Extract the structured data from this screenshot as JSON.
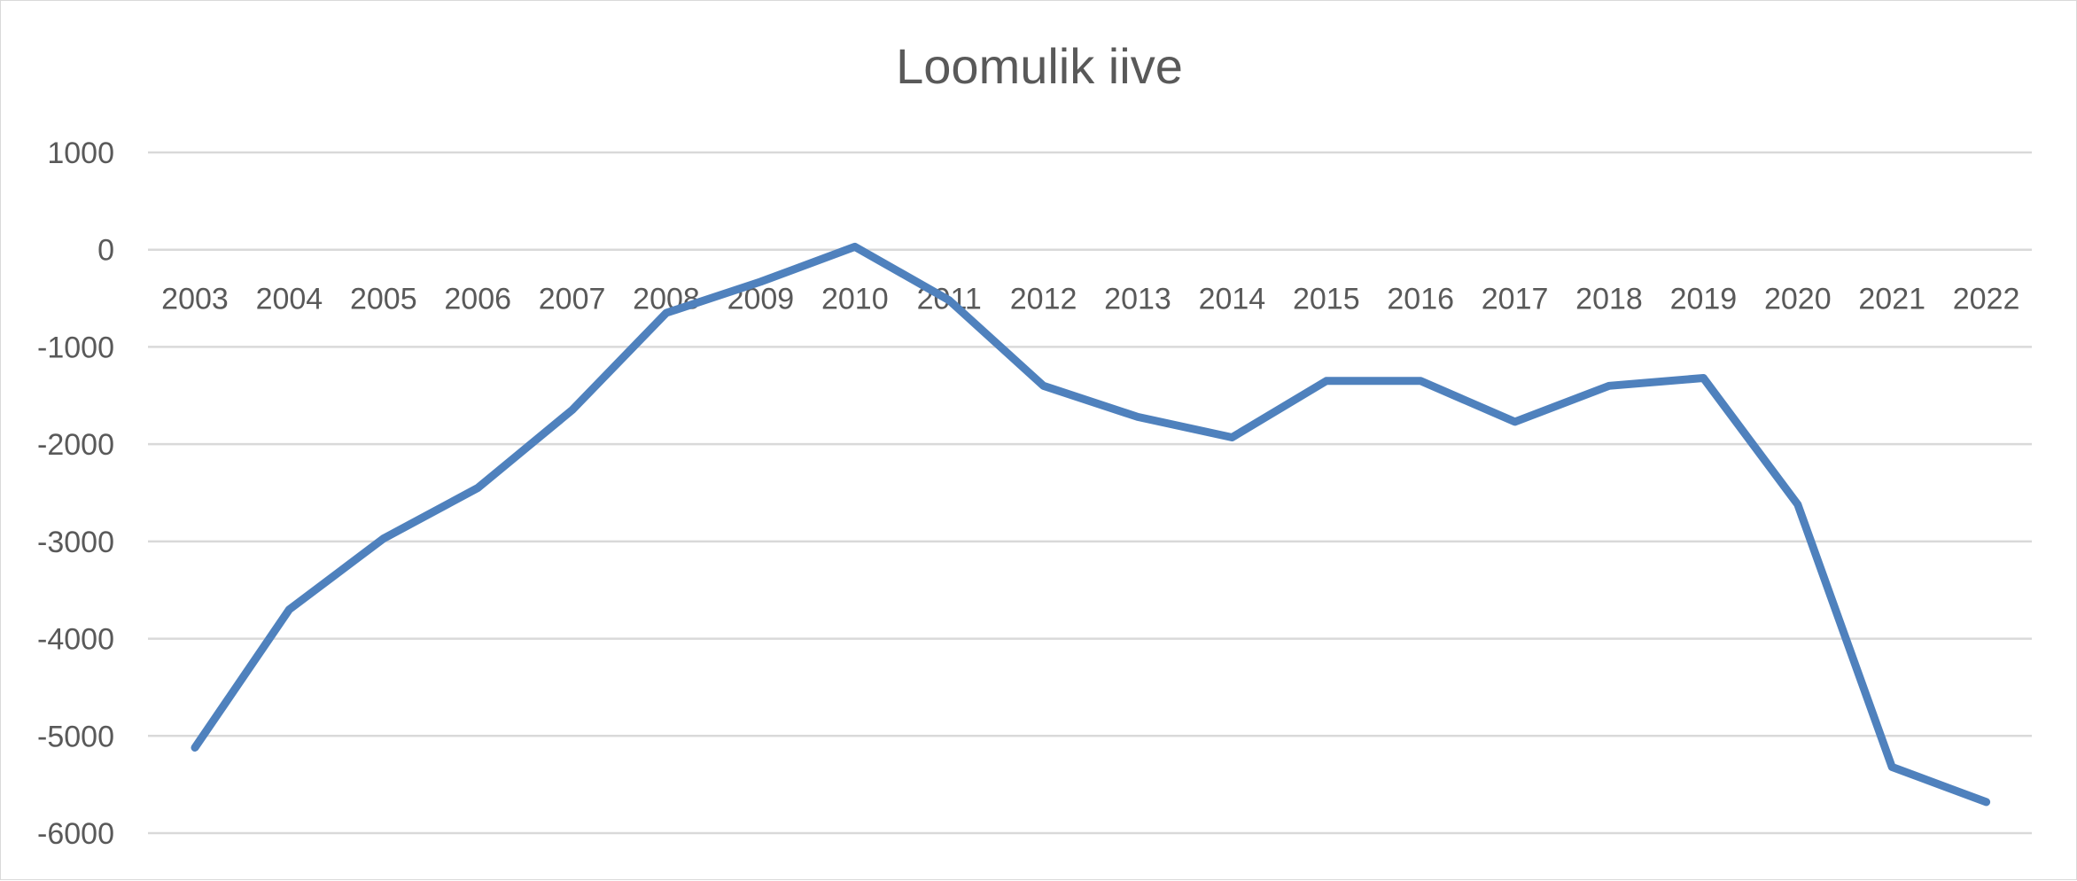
{
  "chart_data": {
    "type": "line",
    "title": "Loomulik iive",
    "xlabel": "",
    "ylabel": "",
    "x": [
      "2003",
      "2004",
      "2005",
      "2006",
      "2007",
      "2008",
      "2009",
      "2010",
      "2011",
      "2012",
      "2013",
      "2014",
      "2015",
      "2016",
      "2017",
      "2018",
      "2019",
      "2020",
      "2021",
      "2022"
    ],
    "series": [
      {
        "values": [
          -5120,
          -3700,
          -2970,
          -2450,
          -1650,
          -650,
          -330,
          30,
          -520,
          -1400,
          -1720,
          -1930,
          -1350,
          -1350,
          -1770,
          -1400,
          -1320,
          -2620,
          -5320,
          -5680
        ],
        "color": "#4f81bd"
      }
    ],
    "ylim": [
      -6000,
      1000
    ],
    "yticks": [
      1000,
      0,
      -1000,
      -2000,
      -3000,
      -4000,
      -5000,
      -6000
    ],
    "grid": true,
    "legend": "none"
  }
}
